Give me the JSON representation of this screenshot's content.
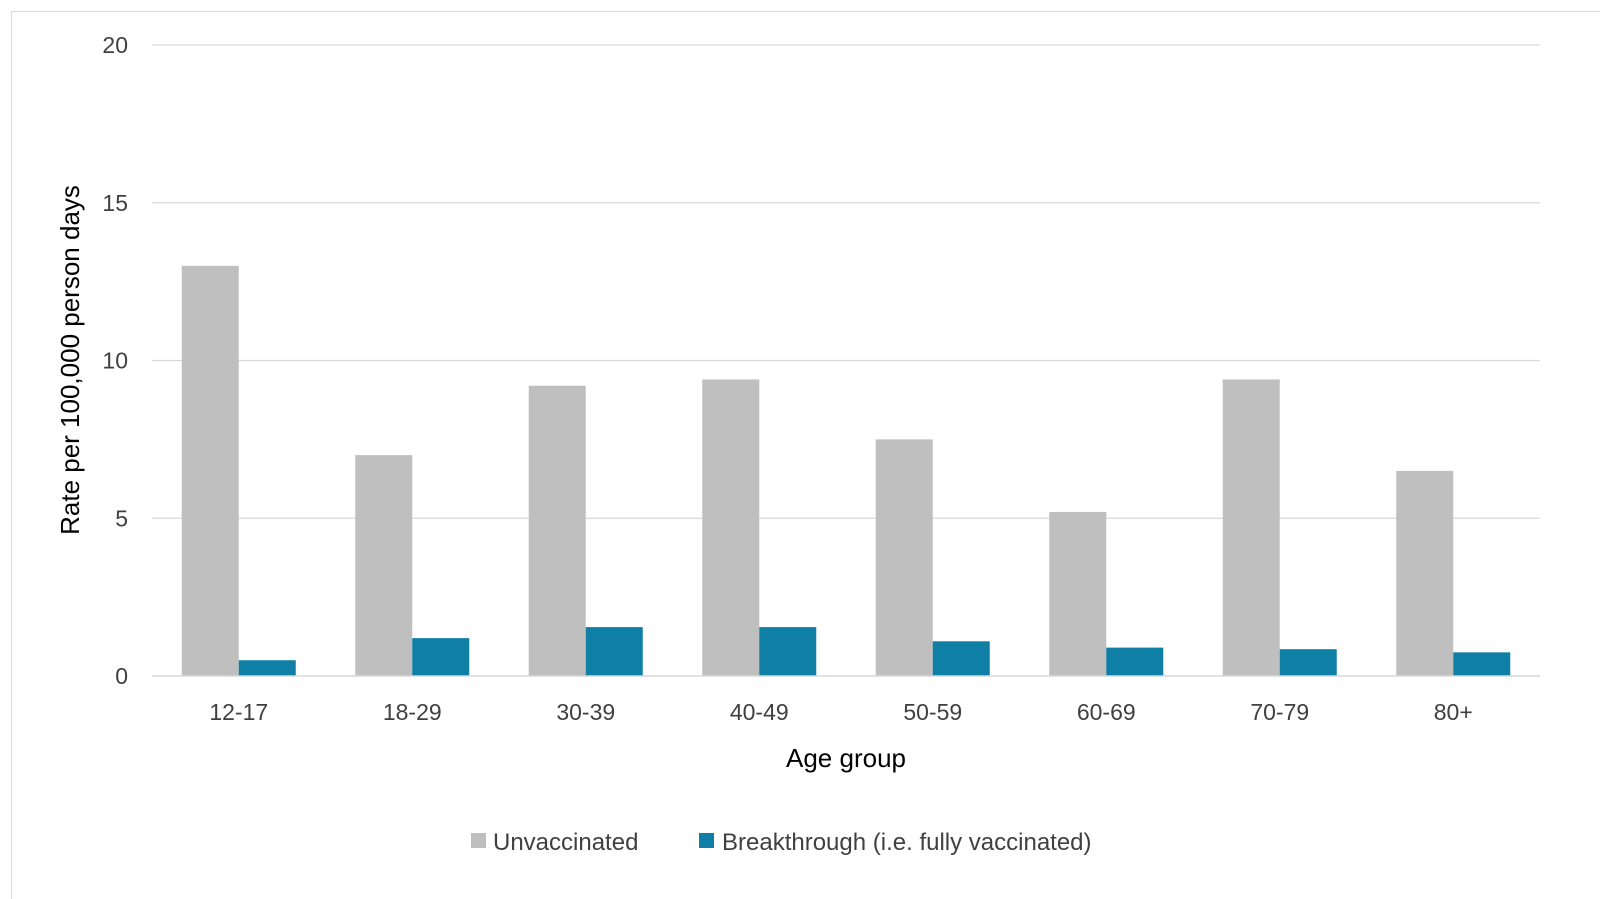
{
  "chart_data": {
    "type": "bar",
    "title": "",
    "xlabel": "Age group",
    "ylabel": "Rate per 100,000 person days",
    "ylim": [
      0,
      20
    ],
    "yticks": [
      0,
      5,
      10,
      15,
      20
    ],
    "grid": true,
    "legend_position": "bottom",
    "categories": [
      "12-17",
      "18-29",
      "30-39",
      "40-49",
      "50-59",
      "60-69",
      "70-79",
      "80+"
    ],
    "series": [
      {
        "name": "Unvaccinated",
        "color": "#bfbfbf",
        "values": [
          13.0,
          7.0,
          9.2,
          9.4,
          7.5,
          5.2,
          9.4,
          6.5
        ]
      },
      {
        "name": "Breakthrough (i.e. fully vaccinated)",
        "color": "#0f7fa6",
        "values": [
          0.5,
          1.2,
          1.55,
          1.55,
          1.1,
          0.9,
          0.85,
          0.75
        ]
      }
    ]
  }
}
